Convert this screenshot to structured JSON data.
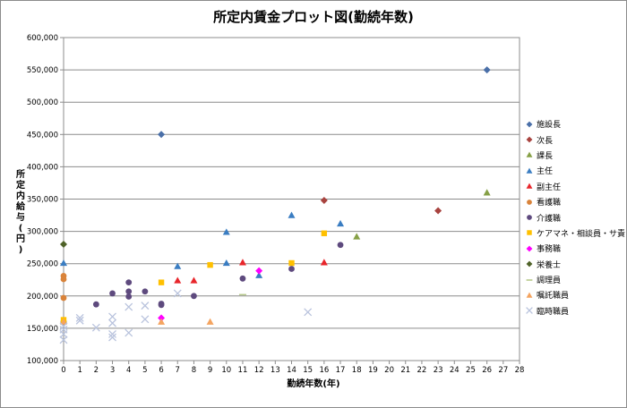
{
  "chart_data": {
    "type": "scatter",
    "title": "所定内賃金プロット図(勤続年数)",
    "xlabel": "勤続年数(年)",
    "ylabel": "所定内給与(円)",
    "xlim": [
      0,
      28
    ],
    "ylim": [
      100000,
      600000
    ],
    "x_ticks": [
      "0",
      "1",
      "2",
      "3",
      "4",
      "5",
      "6",
      "7",
      "8",
      "9",
      "10",
      "11",
      "12",
      "13",
      "14",
      "15",
      "16",
      "17",
      "18",
      "19",
      "20",
      "21",
      "22",
      "23",
      "24",
      "25",
      "26",
      "27",
      "28"
    ],
    "y_ticks": [
      "100,000",
      "150,000",
      "200,000",
      "250,000",
      "300,000",
      "350,000",
      "400,000",
      "450,000",
      "500,000",
      "550,000",
      "600,000"
    ],
    "grid": "horizontal",
    "legend_position": "right",
    "series": [
      {
        "name": "施設長",
        "color": "#4a6fa8",
        "marker": "diamond",
        "points": [
          [
            6,
            450000
          ],
          [
            26,
            550000
          ]
        ]
      },
      {
        "name": "次長",
        "color": "#a8433f",
        "marker": "diamond",
        "points": [
          [
            16,
            348000
          ],
          [
            23,
            332000
          ]
        ]
      },
      {
        "name": "課長",
        "color": "#86a046",
        "marker": "triangle",
        "points": [
          [
            18,
            292000
          ],
          [
            26,
            360000
          ]
        ]
      },
      {
        "name": "主任",
        "color": "#3a7dc2",
        "marker": "triangle",
        "points": [
          [
            0,
            251000
          ],
          [
            7,
            246000
          ],
          [
            10,
            299000
          ],
          [
            10,
            251000
          ],
          [
            12,
            232000
          ],
          [
            14,
            325000
          ],
          [
            17,
            312000
          ]
        ]
      },
      {
        "name": "副主任",
        "color": "#e8262b",
        "marker": "triangle",
        "points": [
          [
            7,
            224000
          ],
          [
            8,
            224000
          ],
          [
            11,
            252000
          ],
          [
            16,
            252000
          ]
        ]
      },
      {
        "name": "看護職",
        "color": "#d9833a",
        "marker": "circle",
        "points": [
          [
            0,
            231000
          ],
          [
            0,
            226000
          ],
          [
            0,
            197000
          ]
        ]
      },
      {
        "name": "介護職",
        "color": "#5e4a7e",
        "marker": "circle",
        "points": [
          [
            0,
            160000
          ],
          [
            2,
            187000
          ],
          [
            3,
            204000
          ],
          [
            4,
            221000
          ],
          [
            4,
            207000
          ],
          [
            4,
            199000
          ],
          [
            5,
            207000
          ],
          [
            6,
            188000
          ],
          [
            6,
            186000
          ],
          [
            8,
            200000
          ],
          [
            11,
            227000
          ],
          [
            14,
            242000
          ],
          [
            17,
            279000
          ]
        ]
      },
      {
        "name": "ケアマネ・相談員・サ責",
        "color": "#ffc000",
        "marker": "square",
        "points": [
          [
            0,
            163000
          ],
          [
            6,
            221000
          ],
          [
            9,
            248000
          ],
          [
            14,
            251000
          ],
          [
            16,
            297000
          ]
        ]
      },
      {
        "name": "事務職",
        "color": "#ff00ff",
        "marker": "diamond",
        "points": [
          [
            6,
            166000
          ],
          [
            12,
            239000
          ]
        ]
      },
      {
        "name": "栄養士",
        "color": "#4f6228",
        "marker": "diamond",
        "points": [
          [
            0,
            280000
          ]
        ]
      },
      {
        "name": "調理員",
        "color": "#b7c98b",
        "marker": "dash",
        "points": [
          [
            11,
            202000
          ]
        ]
      },
      {
        "name": "嘱託職員",
        "color": "#f4a460",
        "marker": "triangle",
        "points": [
          [
            0,
            160000
          ],
          [
            6,
            160000
          ],
          [
            9,
            160000
          ]
        ]
      },
      {
        "name": "臨時職員",
        "color": "#b9c3dd",
        "marker": "x",
        "points": [
          [
            0,
            132000
          ],
          [
            0,
            141000
          ],
          [
            0,
            148000
          ],
          [
            0,
            153000
          ],
          [
            1,
            162000
          ],
          [
            1,
            166000
          ],
          [
            2,
            151000
          ],
          [
            3,
            136000
          ],
          [
            3,
            141000
          ],
          [
            3,
            158000
          ],
          [
            3,
            168000
          ],
          [
            4,
            143000
          ],
          [
            4,
            183000
          ],
          [
            5,
            164000
          ],
          [
            5,
            185000
          ],
          [
            7,
            204000
          ],
          [
            15,
            175000
          ]
        ]
      }
    ]
  }
}
